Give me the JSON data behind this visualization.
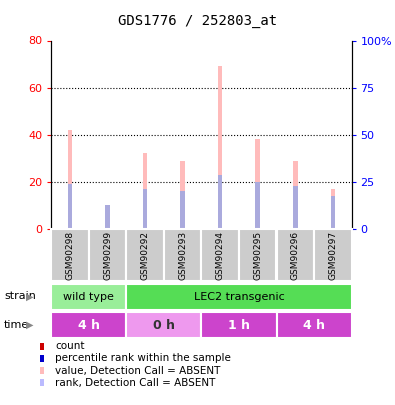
{
  "title": "GDS1776 / 252803_at",
  "samples": [
    "GSM90298",
    "GSM90299",
    "GSM90292",
    "GSM90293",
    "GSM90294",
    "GSM90295",
    "GSM90296",
    "GSM90297"
  ],
  "bar_values_pink": [
    42,
    8,
    32,
    29,
    69,
    38,
    29,
    17
  ],
  "bar_values_blue": [
    19,
    10,
    17,
    16,
    23,
    20,
    18,
    14
  ],
  "left_yticks": [
    0,
    20,
    40,
    60,
    80
  ],
  "right_yticks": [
    0,
    25,
    50,
    75,
    100
  ],
  "right_ylabels": [
    "0",
    "25",
    "50",
    "75",
    "100%"
  ],
  "ylim": [
    0,
    80
  ],
  "strain_labels": [
    {
      "label": "wild type",
      "start": 0,
      "end": 2,
      "color": "#99ee99"
    },
    {
      "label": "LEC2 transgenic",
      "start": 2,
      "end": 8,
      "color": "#55dd55"
    }
  ],
  "time_labels": [
    {
      "label": "4 h",
      "start": 0,
      "end": 2,
      "color": "#cc44cc"
    },
    {
      "label": "0 h",
      "start": 2,
      "end": 4,
      "color": "#ee99ee"
    },
    {
      "label": "1 h",
      "start": 4,
      "end": 6,
      "color": "#cc44cc"
    },
    {
      "label": "4 h",
      "start": 6,
      "end": 8,
      "color": "#cc44cc"
    }
  ],
  "legend_items": [
    {
      "color": "#cc0000",
      "label": "count"
    },
    {
      "color": "#0000cc",
      "label": "percentile rank within the sample"
    },
    {
      "color": "#ffbbbb",
      "label": "value, Detection Call = ABSENT"
    },
    {
      "color": "#bbbbff",
      "label": "rank, Detection Call = ABSENT"
    }
  ],
  "pink_color": "#ffbbbb",
  "blue_color": "#aaaadd",
  "bar_width": 0.12,
  "figsize": [
    3.95,
    4.05
  ],
  "dpi": 100
}
